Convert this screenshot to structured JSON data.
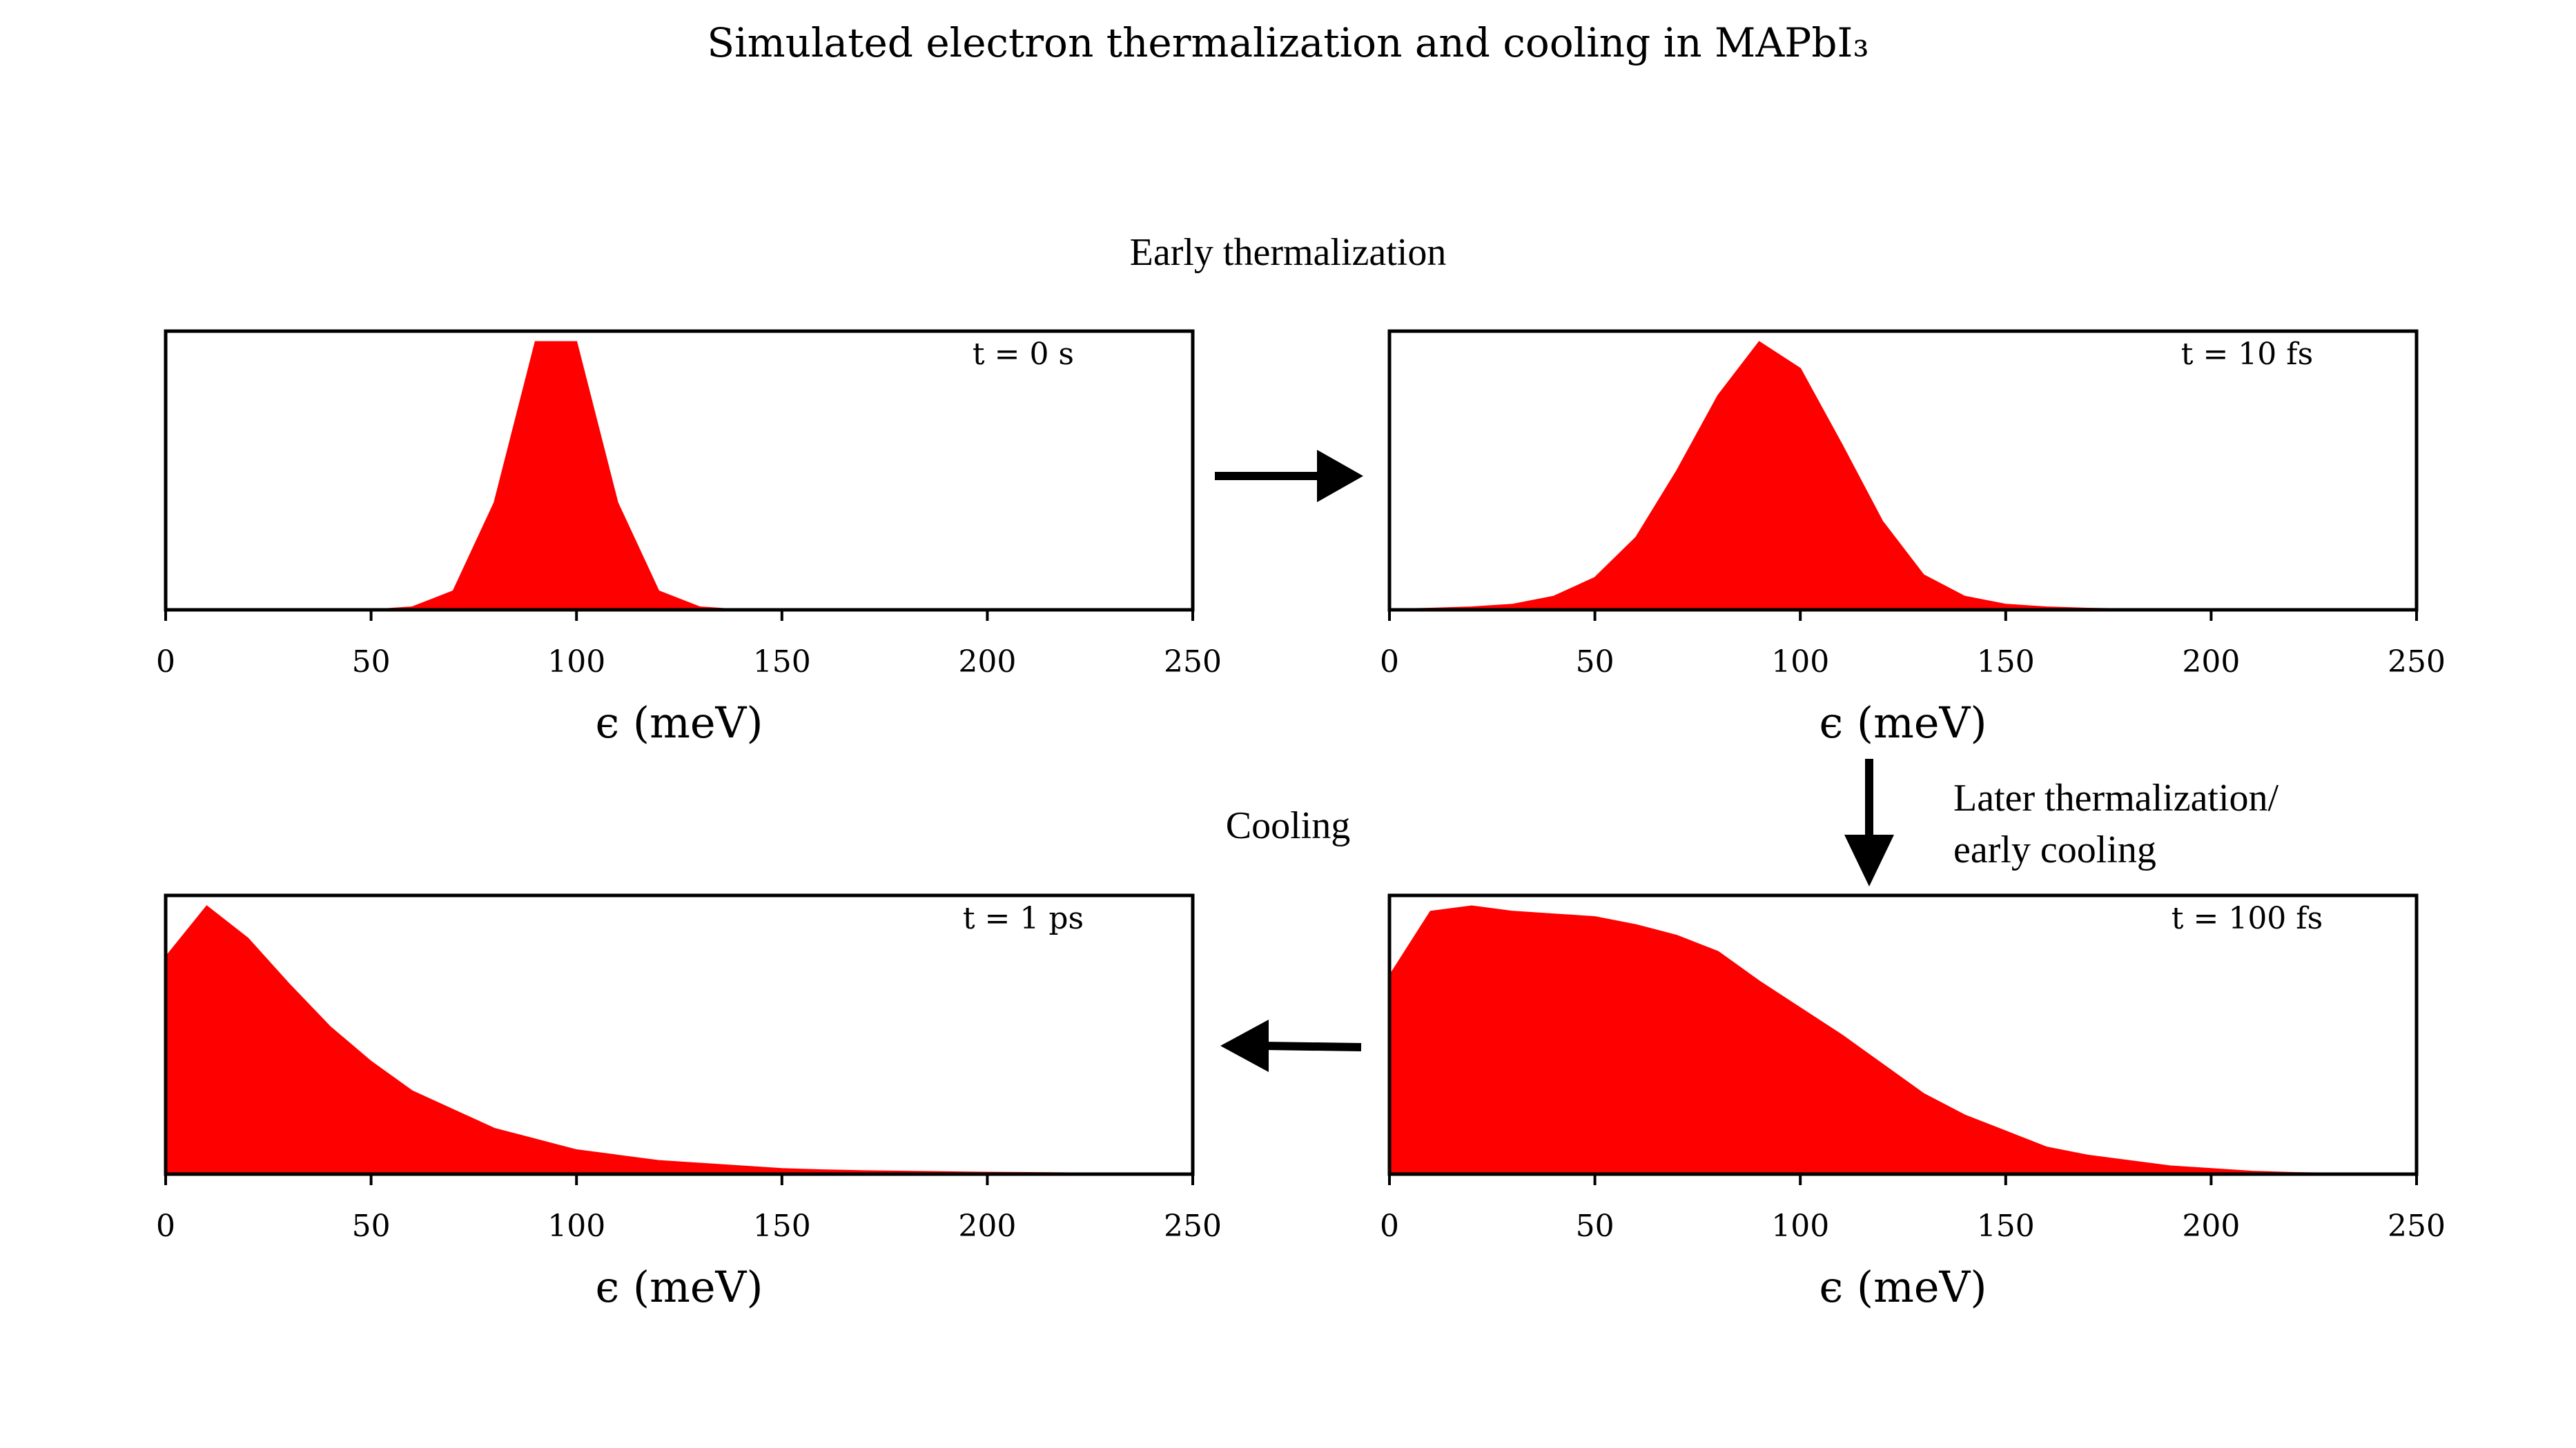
{
  "title": "Simulated electron thermalization and cooling in MAPbI₃",
  "sections": {
    "top": "Early thermalization",
    "bottom": "Cooling",
    "right_line1": "Later thermalization/",
    "right_line2": "early cooling"
  },
  "colors": {
    "fill": "#ff0000",
    "axis": "#000000"
  },
  "chart_data": [
    {
      "type": "area",
      "annotation": "t = 0 s",
      "xlabel": "ϵ (meV)",
      "ylabel": "",
      "xlim": [
        0,
        250
      ],
      "ylim": [
        0,
        1.04
      ],
      "xticks": [
        0,
        50,
        100,
        150,
        200,
        250
      ],
      "yticks_shown": false,
      "x": [
        0,
        10,
        20,
        30,
        40,
        50,
        60,
        70,
        80,
        90,
        100,
        110,
        120,
        130,
        140,
        150,
        160,
        170,
        180,
        190,
        200,
        210,
        220,
        230,
        240,
        250
      ],
      "y": [
        0,
        0,
        0,
        0,
        0,
        0,
        0.01,
        0.07,
        0.4,
        1.0,
        1.0,
        0.4,
        0.07,
        0.01,
        0,
        0,
        0,
        0,
        0,
        0,
        0,
        0,
        0,
        0,
        0,
        0
      ]
    },
    {
      "type": "area",
      "annotation": "t = 10 fs",
      "xlabel": "ϵ (meV)",
      "ylabel": "",
      "xlim": [
        0,
        250
      ],
      "ylim": [
        0,
        1.04
      ],
      "xticks": [
        0,
        50,
        100,
        150,
        200,
        250
      ],
      "yticks_shown": false,
      "x": [
        0,
        10,
        20,
        30,
        40,
        50,
        60,
        70,
        80,
        90,
        100,
        110,
        120,
        130,
        140,
        150,
        160,
        170,
        180,
        190,
        200,
        210,
        220,
        230,
        240,
        250
      ],
      "y": [
        0.002,
        0.005,
        0.01,
        0.02,
        0.05,
        0.12,
        0.27,
        0.52,
        0.8,
        1.0,
        0.9,
        0.62,
        0.33,
        0.13,
        0.05,
        0.02,
        0.01,
        0.005,
        0.003,
        0.002,
        0.001,
        0.001,
        0,
        0,
        0,
        0
      ]
    },
    {
      "type": "area",
      "annotation": "t = 100 fs",
      "xlabel": "ϵ (meV)",
      "ylabel": "",
      "xlim": [
        0,
        250
      ],
      "ylim": [
        0,
        1.04
      ],
      "xticks": [
        0,
        50,
        100,
        150,
        200,
        250
      ],
      "yticks_shown": false,
      "x": [
        0,
        10,
        20,
        30,
        40,
        50,
        60,
        70,
        80,
        90,
        100,
        110,
        120,
        130,
        140,
        150,
        160,
        170,
        180,
        190,
        200,
        210,
        220,
        230,
        240,
        250
      ],
      "y": [
        0.74,
        0.98,
        1.0,
        0.98,
        0.97,
        0.96,
        0.93,
        0.89,
        0.83,
        0.72,
        0.62,
        0.52,
        0.41,
        0.3,
        0.22,
        0.16,
        0.1,
        0.07,
        0.05,
        0.03,
        0.02,
        0.01,
        0.005,
        0.003,
        0.002,
        0.001
      ]
    },
    {
      "type": "area",
      "annotation": "t = 1 ps",
      "xlabel": "ϵ (meV)",
      "ylabel": "",
      "xlim": [
        0,
        250
      ],
      "ylim": [
        0,
        1.04
      ],
      "xticks": [
        0,
        50,
        100,
        150,
        200,
        250
      ],
      "yticks_shown": false,
      "x": [
        0,
        10,
        20,
        30,
        40,
        50,
        60,
        70,
        80,
        90,
        100,
        110,
        120,
        130,
        140,
        150,
        160,
        170,
        180,
        190,
        200,
        210,
        220,
        230,
        240,
        250
      ],
      "y": [
        0.81,
        1.0,
        0.88,
        0.71,
        0.55,
        0.42,
        0.31,
        0.24,
        0.17,
        0.13,
        0.09,
        0.07,
        0.05,
        0.04,
        0.03,
        0.02,
        0.015,
        0.012,
        0.01,
        0.008,
        0.006,
        0.005,
        0.004,
        0.003,
        0.002,
        0.001
      ]
    }
  ]
}
